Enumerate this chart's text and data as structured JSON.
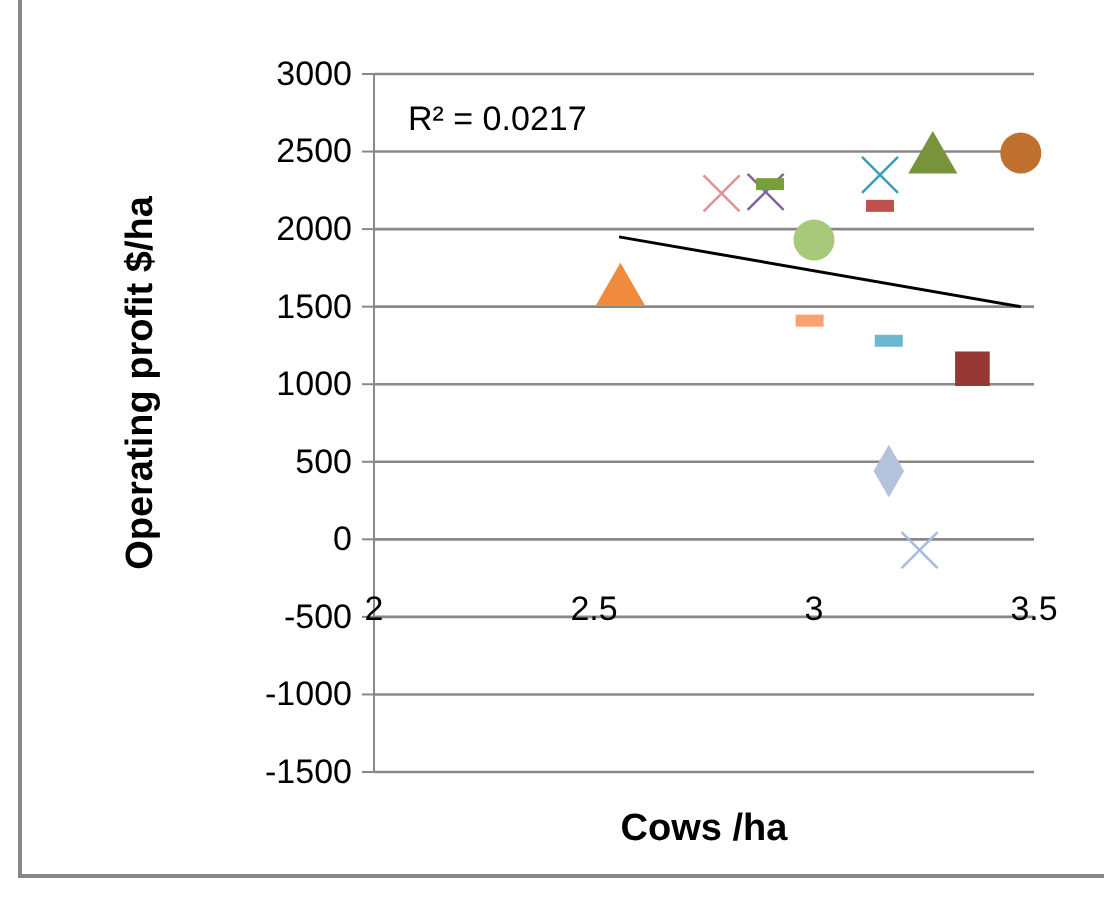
{
  "chart_data": {
    "type": "scatter",
    "xlabel": "Cows /ha",
    "ylabel": "Operating profit $/ha",
    "xlim": [
      2,
      3.5
    ],
    "xticks": [
      2,
      2.5,
      3,
      3.5
    ],
    "ylim": [
      -1500,
      3000
    ],
    "yticks": [
      -1500,
      -1000,
      -500,
      0,
      500,
      1000,
      1500,
      2000,
      2500,
      3000
    ],
    "grid": "y",
    "annotations": [
      "R² = 0.0217"
    ],
    "series": [
      {
        "color": "#f08a3c",
        "marker": "triangle",
        "x": [
          2.56
        ],
        "values": [
          1600
        ]
      },
      {
        "color": "#d99694",
        "marker": "cross",
        "x": [
          2.79
        ],
        "values": [
          2230
        ]
      },
      {
        "color": "#8064a2",
        "marker": "cross",
        "x": [
          2.89
        ],
        "values": [
          2240
        ]
      },
      {
        "color": "#77a03b",
        "x": [
          2.9
        ],
        "values": [
          2290
        ]
      },
      {
        "color": "#a9c97a",
        "marker": "circle",
        "x": [
          3.0
        ],
        "values": [
          1930
        ]
      },
      {
        "color": "#f7a270",
        "x": [
          2.99
        ],
        "values": [
          1410
        ]
      },
      {
        "color": "#3d9fb8",
        "marker": "cross",
        "x": [
          3.15
        ],
        "values": [
          2350
        ]
      },
      {
        "color": "#c0504d",
        "x": [
          3.15
        ],
        "values": [
          2150
        ]
      },
      {
        "color": "#6cb8d0",
        "x": [
          3.17
        ],
        "values": [
          1280
        ]
      },
      {
        "color": "#77933c",
        "marker": "triangle",
        "x": [
          3.27
        ],
        "values": [
          2450
        ]
      },
      {
        "color": "#c0702e",
        "marker": "circle",
        "x": [
          3.47
        ],
        "values": [
          2490
        ]
      },
      {
        "color": "#953735",
        "marker": "square",
        "x": [
          3.36
        ],
        "values": [
          1100
        ]
      },
      {
        "color": "#b4c2dc",
        "marker": "diamond",
        "x": [
          3.17
        ],
        "values": [
          440
        ]
      },
      {
        "color": "#a8bce0",
        "marker": "cross",
        "x": [
          3.24
        ],
        "values": [
          -70
        ]
      },
      {
        "type": "line",
        "color": "#000000",
        "marker": "none",
        "x": [
          2.557,
          3.47
        ],
        "values": [
          1950,
          1500
        ]
      }
    ]
  }
}
